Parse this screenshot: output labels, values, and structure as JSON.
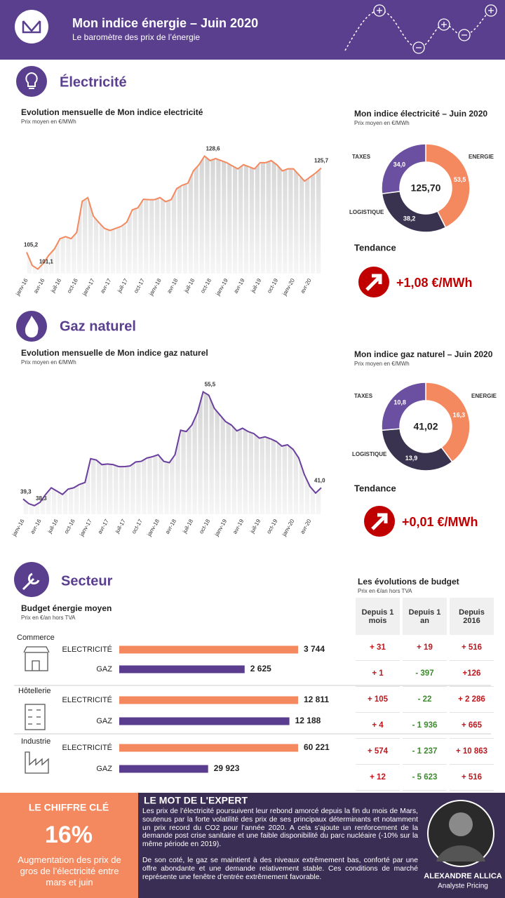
{
  "header": {
    "title": "Mon indice énergie – Juin 2020",
    "subtitle": "Le baromètre des prix de l’énergie"
  },
  "sections": {
    "electricity": "Électricité",
    "gas": "Gaz naturel",
    "sector": "Secteur"
  },
  "chart_data": [
    {
      "type": "line",
      "title": "Evolution mensuelle de Mon indice electricité",
      "subtitle": "Prix moyen en €/MWh",
      "categories": [
        "janv-16",
        null,
        null,
        "avr-16",
        null,
        null,
        "juil-16",
        null,
        null,
        "oct-16",
        null,
        null,
        "janv-17",
        null,
        null,
        "avr-17",
        null,
        null,
        "juil-17",
        null,
        null,
        "oct-17",
        null,
        null,
        "janv-18",
        null,
        null,
        "avr-18",
        null,
        null,
        "juil-18",
        null,
        null,
        "oct-18",
        null,
        null,
        "janv-19",
        null,
        null,
        "avr-19",
        null,
        null,
        "juil-19",
        null,
        null,
        "oct-19",
        null,
        null,
        "janv-20",
        null,
        null,
        "avr-20",
        null,
        null
      ],
      "values": [
        105.2,
        102,
        101.1,
        102.5,
        104.5,
        106,
        108.5,
        109,
        108.5,
        110,
        117.6,
        118.5,
        114,
        112.4,
        111,
        110.5,
        111,
        111.5,
        112.5,
        115.5,
        116,
        118.1,
        118,
        118,
        118.5,
        117.5,
        118,
        120.7,
        121.5,
        122,
        125,
        126.5,
        128.6,
        127.5,
        128,
        127.5,
        127,
        126.2,
        125.5,
        126.5,
        126,
        125.5,
        127,
        127,
        127.5,
        126.5,
        125,
        125.5,
        125.5,
        124,
        122.5,
        123.5,
        124.5,
        125.7
      ],
      "value_labels": [
        "105,2",
        null,
        "101,1",
        null,
        null,
        null,
        null,
        null,
        null,
        null,
        null,
        null,
        null,
        null,
        null,
        null,
        null,
        null,
        null,
        null,
        null,
        null,
        null,
        null,
        null,
        null,
        null,
        null,
        null,
        null,
        null,
        null,
        "128,6",
        null,
        null,
        null,
        null,
        null,
        null,
        null,
        null,
        null,
        null,
        null,
        null,
        null,
        null,
        null,
        null,
        null,
        null,
        null,
        null,
        "125,7"
      ],
      "color": "#f4895f",
      "ylim": [
        100,
        135
      ]
    },
    {
      "type": "pie",
      "donut": true,
      "title": "Mon indice électricité – Juin 2020",
      "subtitle": "Prix moyen en €/MWh",
      "center_label": "125,70",
      "categories": [
        "ENERGIE",
        "LOGISTIQUE",
        "TAXES"
      ],
      "values": [
        53.5,
        38.2,
        34.0
      ],
      "value_labels": [
        "53,5",
        "38,2",
        "34,0"
      ],
      "colors": [
        "#f4895f",
        "#3a3350",
        "#6b4fa0"
      ]
    },
    {
      "type": "line",
      "title": "Evolution mensuelle de Mon indice gaz naturel",
      "subtitle": "Prix moyen en €/MWh",
      "categories": [
        "janv-16",
        null,
        null,
        "avr-16",
        null,
        null,
        "juil-16",
        null,
        null,
        "oct-16",
        null,
        null,
        "janv-17",
        null,
        null,
        "avr-17",
        null,
        null,
        "juil-17",
        null,
        null,
        "oct-17",
        null,
        null,
        "janv-18",
        null,
        null,
        "avr-18",
        null,
        null,
        "juil-18",
        null,
        null,
        "oct-18",
        null,
        null,
        "janv-19",
        null,
        null,
        "avr-19",
        null,
        null,
        "juil-19",
        null,
        null,
        "oct-19",
        null,
        null,
        "janv-20",
        null,
        null,
        "avr-20",
        null,
        null
      ],
      "values": [
        39.3,
        38.6,
        38.3,
        38.8,
        40,
        41,
        40.5,
        40,
        40.8,
        41,
        41.5,
        41.8,
        45.4,
        45.2,
        44.5,
        44.6,
        44.5,
        44.2,
        44.2,
        44.3,
        44.9,
        45,
        45.5,
        45.7,
        46,
        45,
        44.8,
        46,
        49.7,
        49.5,
        50.5,
        52.4,
        55.5,
        55,
        53,
        52,
        51,
        50.5,
        49.6,
        50,
        49.5,
        49.2,
        48.5,
        48.7,
        48.4,
        48,
        47.3,
        47.5,
        46.8,
        45.5,
        43,
        41.2,
        40.2,
        41.0
      ],
      "value_labels": [
        "39,3",
        null,
        "38,3",
        null,
        null,
        null,
        null,
        null,
        null,
        null,
        null,
        null,
        null,
        null,
        null,
        null,
        null,
        null,
        null,
        null,
        null,
        null,
        null,
        null,
        null,
        null,
        null,
        null,
        null,
        null,
        null,
        null,
        "55,5",
        null,
        null,
        null,
        null,
        null,
        null,
        null,
        null,
        null,
        null,
        null,
        null,
        null,
        null,
        null,
        null,
        null,
        null,
        null,
        null,
        "41,0"
      ],
      "color": "#6a3f9e",
      "ylim": [
        37,
        58
      ]
    },
    {
      "type": "pie",
      "donut": true,
      "title": "Mon indice gaz naturel – Juin 2020",
      "subtitle": "Prix moyen en €/MWh",
      "center_label": "41,02",
      "categories": [
        "ENERGIE",
        "LOGISTIQUE",
        "TAXES"
      ],
      "values": [
        16.3,
        13.9,
        10.8
      ],
      "value_labels": [
        "16,3",
        "13,9",
        "10,8"
      ],
      "colors": [
        "#f4895f",
        "#3a3350",
        "#6b4fa0"
      ]
    },
    {
      "type": "bar",
      "orientation": "horizontal",
      "title": "Budget énergie moyen",
      "subtitle": "Prix en €/an hors TVA",
      "categories": [
        "Commerce",
        "Hôtellerie",
        "Industrie"
      ],
      "series": [
        {
          "name": "ELECTRICITÉ",
          "color": "#f4895f",
          "values": [
            3744,
            12811,
            60221
          ],
          "value_labels": [
            "3 744",
            "12 811",
            "60 221"
          ]
        },
        {
          "name": "GAZ",
          "color": "#5b3d8f",
          "values": [
            2625,
            12188,
            29923
          ],
          "value_labels": [
            "2 625",
            "12 188",
            "29 923"
          ]
        }
      ]
    }
  ],
  "trend": {
    "electricity": {
      "label": "Tendance",
      "value": "+1,08 €/MWh"
    },
    "gas": {
      "label": "Tendance",
      "value": "+0,01 €/MWh"
    }
  },
  "budget_table": {
    "title": "Les évolutions de budget",
    "subtitle": "Prix en €/an hors TVA",
    "columns": [
      "Depuis 1 mois",
      "Depuis 1 an",
      "Depuis 2016"
    ],
    "rows": [
      [
        "+ 31",
        "+ 19",
        "+ 516"
      ],
      [
        "+ 1",
        "- 397",
        "+126"
      ],
      [
        "+ 105",
        "- 22",
        "+ 2 286"
      ],
      [
        "+ 4",
        "- 1 936",
        "+ 665"
      ],
      [
        "+ 574",
        "- 1 237",
        "+ 10 863"
      ],
      [
        "+ 12",
        "- 5 623",
        "+ 516"
      ]
    ]
  },
  "key_figure": {
    "title": "LE CHIFFRE CLÉ",
    "value": "16%",
    "text": "Augmentation des prix de gros de l’électricité entre mars et juin"
  },
  "expert": {
    "title": "LE MOT DE L'EXPERT",
    "paragraphs": [
      "Les prix de l’électricité poursuivent leur rebond amorcé depuis la fin du mois de Mars, soutenus par la forte volatilité des prix de ses principaux déterminants et notamment un prix record du CO2 pour l’année 2020. A cela s’ajoute un renforcement de la demande post crise sanitaire et une faible disponibilité du parc nucléaire (-10% sur la même période en 2019).",
      "De son coté, le gaz se maintient à des niveaux extrêmement bas, conforté par une offre abondante et une demande relativement stable. Ces conditions de marché représente une fenêtre d’entrée extrêmement favorable."
    ],
    "name": "ALEXANDRE ALLICA",
    "role": "Analyste Pricing"
  }
}
